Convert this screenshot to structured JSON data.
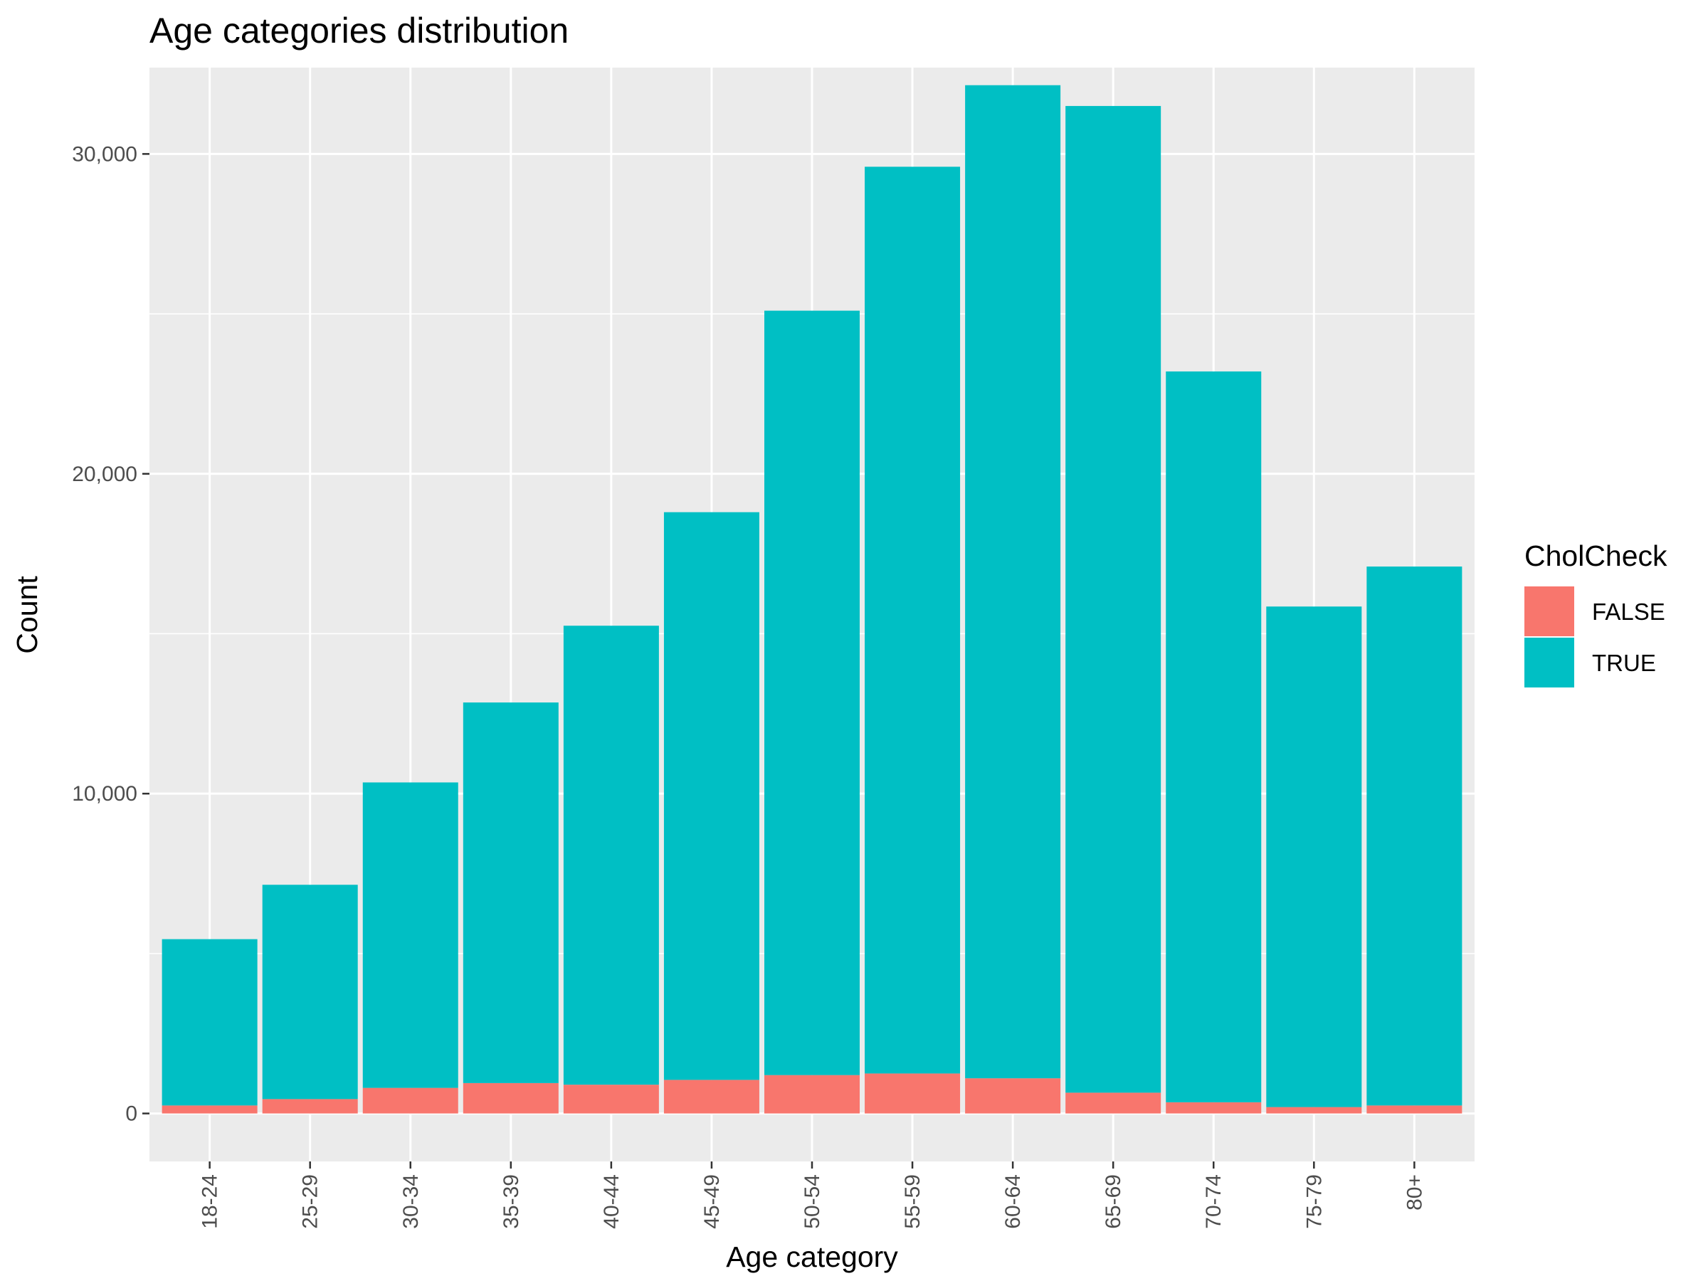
{
  "chart_data": {
    "type": "bar",
    "stacked": true,
    "title": "Age categories distribution",
    "xlabel": "Age category",
    "ylabel": "Count",
    "categories": [
      "18-24",
      "25-29",
      "30-34",
      "35-39",
      "40-44",
      "45-49",
      "50-54",
      "55-59",
      "60-64",
      "65-69",
      "70-74",
      "75-79",
      "80+"
    ],
    "series": [
      {
        "name": "FALSE",
        "color": "#F8766D",
        "values": [
          250,
          450,
          800,
          950,
          900,
          1050,
          1200,
          1250,
          1100,
          650,
          350,
          200,
          250
        ]
      },
      {
        "name": "TRUE",
        "color": "#00BFC4",
        "values": [
          5200,
          6700,
          9550,
          11900,
          14350,
          17750,
          23900,
          28350,
          31050,
          30850,
          22850,
          15650,
          16850
        ]
      }
    ],
    "ylim": [
      -1500,
      32700
    ],
    "yticks": [
      0,
      10000,
      20000,
      30000
    ],
    "ytick_labels": [
      "0",
      "10,000",
      "20,000",
      "30,000"
    ],
    "grid": true,
    "panel_background": "#EBEBEB",
    "legend": {
      "title": "CholCheck",
      "position": "right"
    }
  }
}
